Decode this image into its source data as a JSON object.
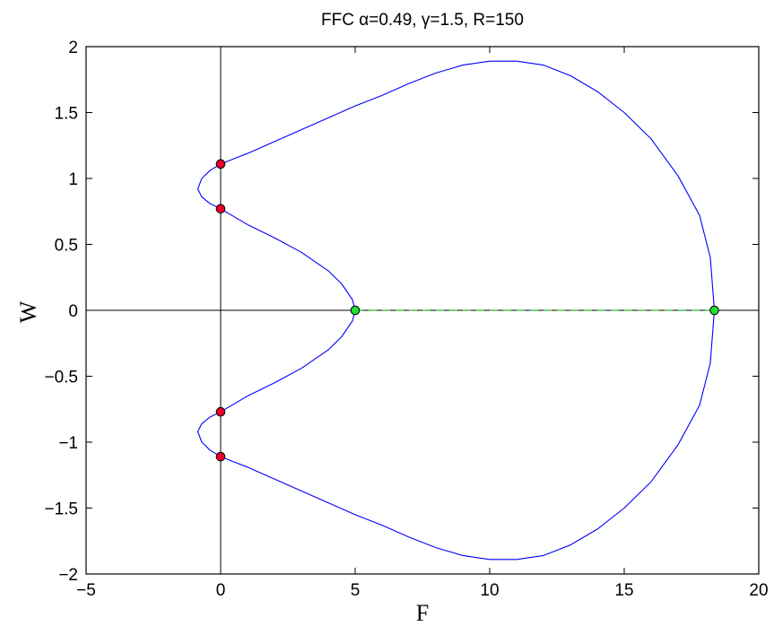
{
  "chart_data": {
    "type": "line",
    "title": "FFC α=0.49, γ=1.5, R=150",
    "xlabel": "F",
    "ylabel": "W",
    "xlim": [
      -5,
      20
    ],
    "ylim": [
      -2,
      2
    ],
    "xticks": [
      -5,
      0,
      5,
      10,
      15,
      20
    ],
    "yticks": [
      -2,
      -1.5,
      -1,
      -0.5,
      0,
      0.5,
      1,
      1.5,
      2
    ],
    "xtick_labels": [
      "−5",
      "0",
      "5",
      "10",
      "15",
      "20"
    ],
    "ytick_labels": [
      "−2",
      "−1.5",
      "−1",
      "−0.5",
      "0",
      "0.5",
      "1",
      "1.5",
      "2"
    ],
    "grid": false,
    "reference_lines": {
      "x": 0,
      "y": 0,
      "color": "#000000"
    },
    "series": [
      {
        "style": "solid",
        "color": "#0000ff",
        "x": [
          18.35,
          18.2,
          17.8,
          17.0,
          16.0,
          15.0,
          14.0,
          13.0,
          12.0,
          11.0,
          10.0,
          9.0,
          8.0,
          7.0,
          6.0,
          5.0,
          4.0,
          3.0,
          2.0,
          1.0,
          0.0,
          -0.4,
          -0.7,
          -0.85,
          -0.7,
          -0.4,
          0.0,
          1.0,
          2.0,
          3.0,
          4.0,
          4.5,
          4.9,
          5.0,
          4.9,
          4.5,
          4.0,
          3.0,
          2.0,
          1.0,
          0.0,
          -0.4,
          -0.7,
          -0.85,
          -0.7,
          -0.4,
          0.0,
          1.0,
          2.0,
          3.0,
          4.0,
          5.0,
          6.0,
          7.0,
          8.0,
          9.0,
          10.0,
          11.0,
          12.0,
          13.0,
          14.0,
          15.0,
          16.0,
          17.0,
          17.8,
          18.2,
          18.35
        ],
        "y": [
          0.0,
          0.4,
          0.72,
          1.02,
          1.3,
          1.5,
          1.66,
          1.78,
          1.86,
          1.89,
          1.89,
          1.86,
          1.8,
          1.72,
          1.63,
          1.55,
          1.46,
          1.37,
          1.28,
          1.19,
          1.11,
          1.06,
          1.0,
          0.92,
          0.86,
          0.81,
          0.77,
          0.65,
          0.55,
          0.44,
          0.3,
          0.2,
          0.08,
          0.0,
          -0.08,
          -0.2,
          -0.3,
          -0.44,
          -0.55,
          -0.65,
          -0.77,
          -0.81,
          -0.86,
          -0.92,
          -1.0,
          -1.06,
          -1.11,
          -1.19,
          -1.28,
          -1.37,
          -1.46,
          -1.55,
          -1.63,
          -1.72,
          -1.8,
          -1.86,
          -1.89,
          -1.89,
          -1.86,
          -1.78,
          -1.66,
          -1.5,
          -1.3,
          -1.02,
          -0.72,
          -0.4,
          0.0
        ]
      },
      {
        "style": "dashed",
        "color": "#4fc64f",
        "x": [
          5.0,
          18.35
        ],
        "y": [
          0.0,
          0.0
        ]
      }
    ],
    "markers": [
      {
        "x": 0,
        "y": 1.11,
        "color": "#e8002a"
      },
      {
        "x": 0,
        "y": 0.77,
        "color": "#e8002a"
      },
      {
        "x": 0,
        "y": -0.77,
        "color": "#e8002a"
      },
      {
        "x": 0,
        "y": -1.11,
        "color": "#e8002a"
      },
      {
        "x": 5.0,
        "y": 0.0,
        "color": "#22dd33"
      },
      {
        "x": 18.35,
        "y": 0.0,
        "color": "#22dd33"
      }
    ]
  }
}
